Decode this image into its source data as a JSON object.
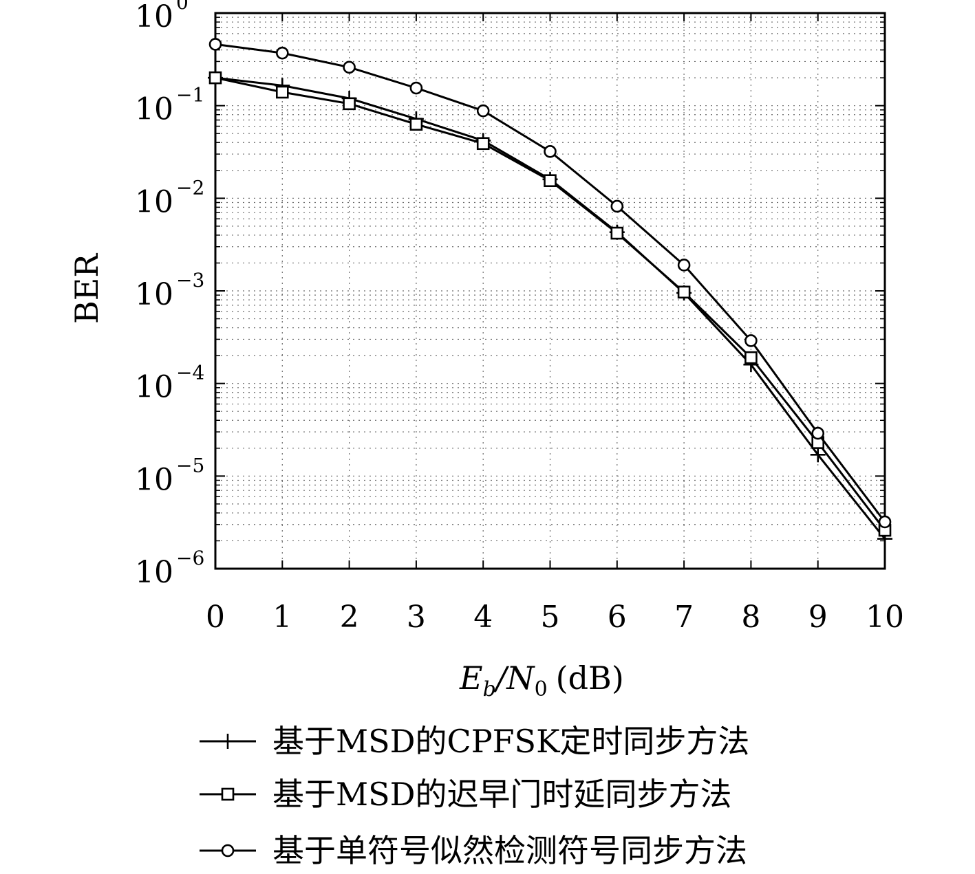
{
  "chart_data": {
    "type": "line",
    "x": [
      0,
      1,
      2,
      3,
      4,
      5,
      6,
      7,
      8,
      9,
      10
    ],
    "xlabel_main": "E",
    "xlabel_sub_b": "b",
    "xlabel_slash_n": "/N",
    "xlabel_sub_0": "0",
    "xlabel_unit": "(dB)",
    "ylabel": "BER",
    "xlim": [
      0,
      10
    ],
    "ylim": [
      1e-06,
      1
    ],
    "yscale": "log",
    "grid": true,
    "x_ticks": [
      "0",
      "1",
      "2",
      "3",
      "4",
      "5",
      "6",
      "7",
      "8",
      "9",
      "10"
    ],
    "y_ticks": [
      {
        "value": 1,
        "base": "10",
        "exp": "0"
      },
      {
        "value": 0.1,
        "base": "10",
        "exp": "−1"
      },
      {
        "value": 0.01,
        "base": "10",
        "exp": "−2"
      },
      {
        "value": 0.001,
        "base": "10",
        "exp": "−3"
      },
      {
        "value": 0.0001,
        "base": "10",
        "exp": "−4"
      },
      {
        "value": 1e-05,
        "base": "10",
        "exp": "−5"
      },
      {
        "value": 1e-06,
        "base": "10",
        "exp": "−6"
      }
    ],
    "legend_position": "bottom",
    "series": [
      {
        "name": "基于MSD的CPFSK定时同步方法",
        "marker": "plus",
        "values": [
          0.2,
          0.165,
          0.12,
          0.072,
          0.042,
          0.016,
          0.0043,
          0.00095,
          0.00016,
          1.7e-05,
          2.1e-06
        ]
      },
      {
        "name": "基于MSD的迟早门时延同步方法",
        "marker": "square",
        "values": [
          0.2,
          0.14,
          0.105,
          0.063,
          0.039,
          0.0155,
          0.0042,
          0.00097,
          0.00019,
          2.3e-05,
          2.6e-06
        ]
      },
      {
        "name": "基于单符号似然检测符号同步方法",
        "marker": "circle",
        "values": [
          0.46,
          0.37,
          0.26,
          0.155,
          0.088,
          0.032,
          0.0082,
          0.0019,
          0.00029,
          2.9e-05,
          3.2e-06
        ]
      }
    ]
  }
}
